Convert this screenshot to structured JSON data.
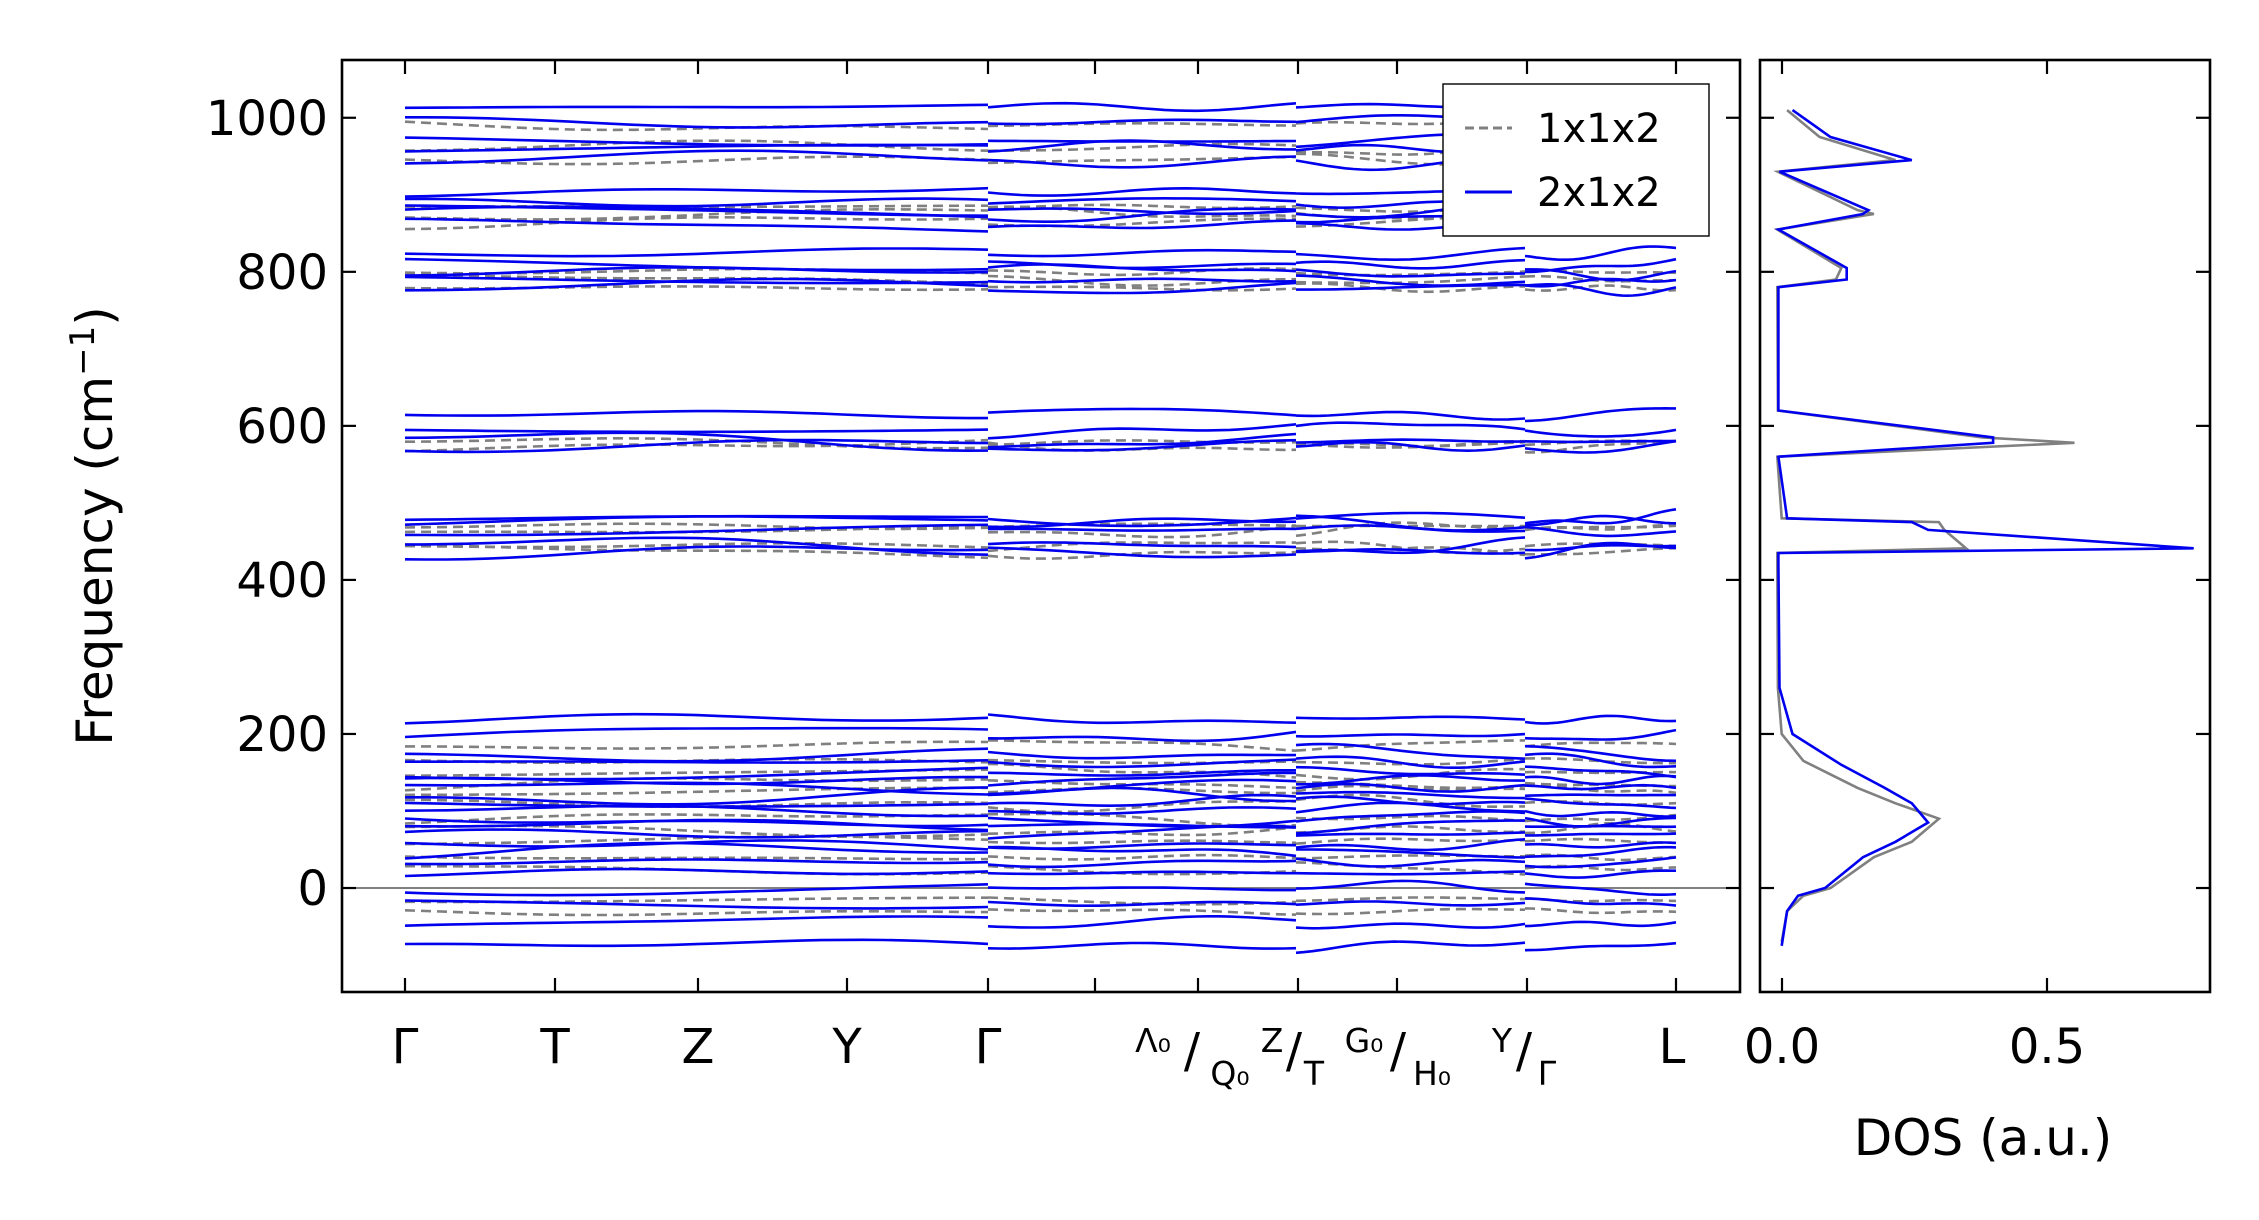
{
  "chart_data": [
    {
      "type": "line",
      "ylabel": "Frequency (cm⁻¹)",
      "ylabel_main": "Frequency (cm",
      "ylabel_sup": "−1",
      "ylabel_close": ")",
      "ylim": [
        -135,
        1075
      ],
      "yticks": [
        0,
        200,
        400,
        600,
        800,
        1000
      ],
      "grid": false,
      "zero_line": true,
      "legend": {
        "position": "top-right",
        "entries": [
          {
            "name": "1x1x2",
            "color": "#808080",
            "style": "dashed"
          },
          {
            "name": "2x1x2",
            "color": "#0000ee",
            "style": "solid"
          }
        ]
      },
      "x_labels": {
        "gamma1": "Γ",
        "T": "T",
        "Z": "Z",
        "Y": "Y",
        "gamma2": "Γ",
        "lambda0": "Λ₀",
        "Q0": "Q₀",
        "Z2": "Z",
        "T2": "T",
        "G0": "G₀",
        "H0": "H₀",
        "Y2": "Y",
        "gamma3": "Γ",
        "L": "L",
        "slash": "/"
      },
      "k_points": [
        "Γ",
        "T",
        "Z",
        "Y",
        "Γ",
        "Λ₀|Q₀",
        "Z|T",
        "G₀|H₀",
        "Y|Γ",
        "L"
      ],
      "series": [
        {
          "name": "1x1x2",
          "bands_cm-1": [
            -30,
            -15,
            25,
            40,
            60,
            75,
            90,
            110,
            125,
            135,
            150,
            165,
            185,
            437,
            443,
            465,
            470,
            575,
            578,
            780,
            790,
            800,
            865,
            875,
            885,
            945,
            960,
            990
          ]
        },
        {
          "name": "2x1x2",
          "bands_cm-1": [
            -75,
            -45,
            -20,
            0,
            20,
            35,
            45,
            55,
            70,
            80,
            90,
            100,
            110,
            120,
            130,
            140,
            150,
            165,
            175,
            200,
            220,
            437,
            443,
            465,
            475,
            480,
            575,
            580,
            595,
            615,
            780,
            790,
            800,
            810,
            825,
            860,
            875,
            880,
            890,
            905,
            945,
            960,
            970,
            995,
            1015
          ]
        }
      ]
    },
    {
      "type": "line",
      "xlabel": "DOS (a.u.)",
      "xlim": [
        -0.03,
        0.8
      ],
      "xticks": [
        "0.0",
        "0.5"
      ],
      "ylim": [
        -135,
        1075
      ],
      "series": [
        {
          "name": "1x1x2",
          "x": [
            0.01,
            0.02,
            0.05,
            0.1,
            0.18,
            0.25,
            0.3,
            0.22,
            0.15,
            0.05,
            0.01,
            0.003,
            0.002,
            0.002,
            0.35,
            0.31,
            0.3,
            0.01,
            0.002,
            0.55,
            0.38,
            0.003,
            0.002,
            0.11,
            0.12,
            0.002,
            0.18,
            0.15,
            0.003,
            0.22,
            0.08,
            0.02
          ],
          "y": [
            -70,
            -30,
            -10,
            0,
            40,
            60,
            90,
            110,
            130,
            165,
            200,
            260,
            420,
            435,
            441,
            465,
            475,
            480,
            560,
            578,
            585,
            620,
            780,
            790,
            805,
            855,
            875,
            880,
            930,
            945,
            975,
            1010
          ]
        },
        {
          "name": "2x1x2",
          "x": [
            0.01,
            0.02,
            0.04,
            0.09,
            0.16,
            0.22,
            0.28,
            0.25,
            0.2,
            0.12,
            0.03,
            0.006,
            0.004,
            0.004,
            0.77,
            0.28,
            0.25,
            0.02,
            0.004,
            0.4,
            0.4,
            0.004,
            0.004,
            0.13,
            0.13,
            0.004,
            0.16,
            0.17,
            0.006,
            0.25,
            0.1,
            0.03
          ],
          "y": [
            -75,
            -30,
            -10,
            0,
            40,
            60,
            85,
            110,
            130,
            160,
            200,
            260,
            420,
            435,
            441,
            465,
            475,
            480,
            560,
            578,
            585,
            620,
            780,
            790,
            805,
            855,
            875,
            880,
            930,
            945,
            975,
            1010
          ]
        }
      ]
    }
  ]
}
